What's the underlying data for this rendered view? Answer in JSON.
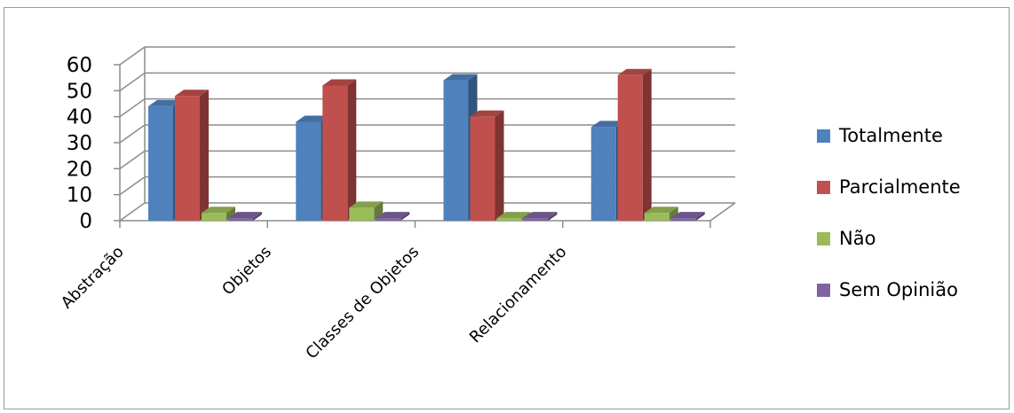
{
  "chart_data": {
    "type": "bar",
    "categories": [
      "Abstração",
      "Objetos",
      "Classes de Objetos",
      "Relacionamento"
    ],
    "series": [
      {
        "name": "Totalmente",
        "color": "#4f81bd",
        "values": [
          44,
          38,
          54,
          36
        ]
      },
      {
        "name": "Parcialmente",
        "color": "#c0504d",
        "values": [
          48,
          52,
          40,
          56
        ]
      },
      {
        "name": "Não",
        "color": "#9bbb59",
        "values": [
          3,
          5,
          1,
          3
        ]
      },
      {
        "name": "Sem Opinião",
        "color": "#8064a2",
        "values": [
          1,
          1,
          1,
          1
        ]
      }
    ],
    "yticks": [
      "0",
      "10",
      "20",
      "30",
      "40",
      "50",
      "60"
    ],
    "ylim": [
      0,
      60
    ],
    "grid": true,
    "legend_position": "right",
    "three_d": true
  }
}
